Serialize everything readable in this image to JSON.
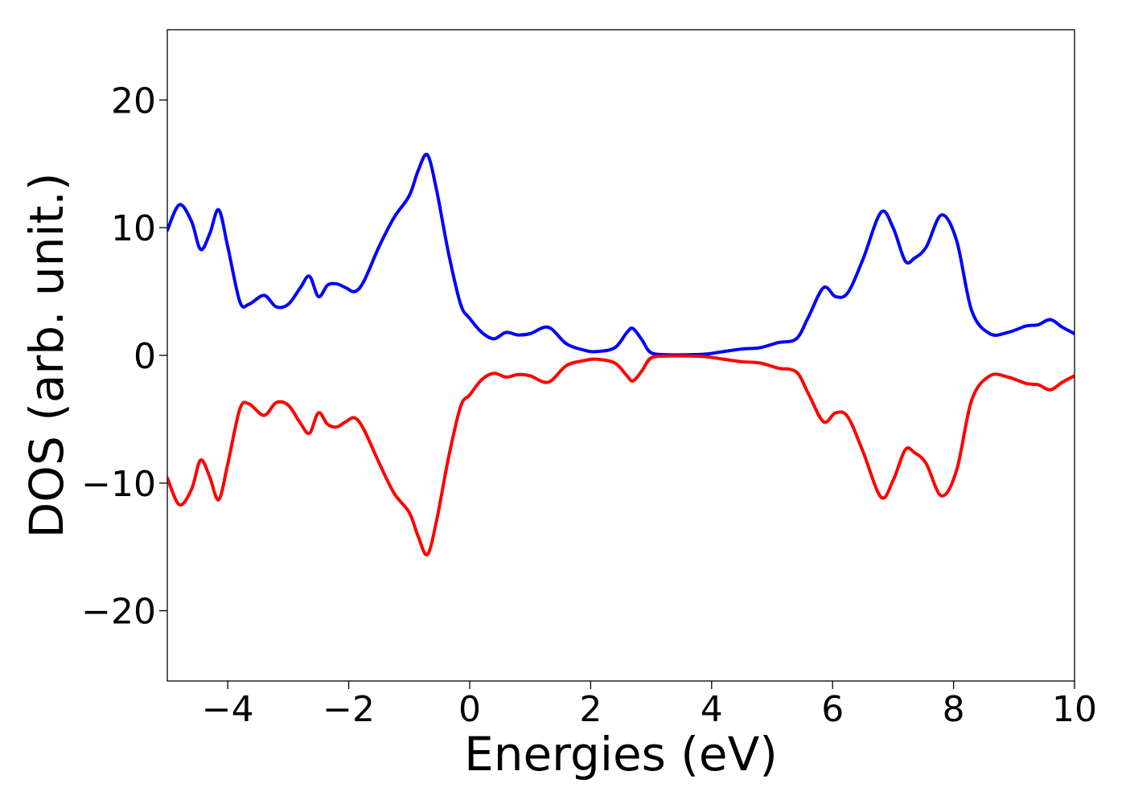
{
  "chart_data": {
    "type": "line",
    "title": "",
    "xlabel": "Energies (eV)",
    "ylabel": "DOS (arb. unit.)",
    "xlim": [
      -5,
      10
    ],
    "ylim": [
      -25.5,
      25.5
    ],
    "grid": false,
    "legend": "none",
    "x_ticks": [
      -4,
      -2,
      0,
      2,
      4,
      6,
      8,
      10
    ],
    "x_tick_labels": [
      "−4",
      "−2",
      "0",
      "2",
      "4",
      "6",
      "8",
      "10"
    ],
    "y_ticks": [
      -20,
      -10,
      0,
      10,
      20
    ],
    "y_tick_labels": [
      "−20",
      "−10",
      "0",
      "10",
      "20"
    ],
    "series": [
      {
        "color": "#0000ff",
        "x": [
          -5.0,
          -4.8,
          -4.6,
          -4.45,
          -4.3,
          -4.15,
          -4.0,
          -3.8,
          -3.65,
          -3.4,
          -3.2,
          -3.0,
          -2.8,
          -2.65,
          -2.5,
          -2.35,
          -2.2,
          -2.05,
          -1.9,
          -1.75,
          -1.5,
          -1.25,
          -1.0,
          -0.85,
          -0.7,
          -0.55,
          -0.35,
          -0.15,
          0.0,
          0.2,
          0.4,
          0.6,
          0.8,
          1.0,
          1.3,
          1.6,
          1.9,
          2.1,
          2.4,
          2.6,
          2.7,
          2.85,
          3.0,
          3.3,
          3.6,
          3.9,
          4.2,
          4.5,
          4.8,
          5.1,
          5.4,
          5.6,
          5.85,
          6.05,
          6.25,
          6.5,
          6.8,
          7.0,
          7.2,
          7.35,
          7.55,
          7.8,
          8.05,
          8.3,
          8.6,
          8.9,
          9.2,
          9.4,
          9.6,
          9.8,
          10.0
        ],
        "values": [
          9.8,
          11.8,
          10.5,
          8.3,
          9.5,
          11.4,
          8.5,
          4.2,
          4.0,
          4.7,
          3.8,
          4.0,
          5.3,
          6.2,
          4.6,
          5.5,
          5.6,
          5.3,
          5.0,
          5.8,
          8.5,
          10.8,
          12.5,
          14.5,
          15.7,
          13.0,
          8.0,
          4.0,
          2.9,
          1.8,
          1.3,
          1.8,
          1.6,
          1.7,
          2.2,
          0.9,
          0.4,
          0.3,
          0.6,
          1.8,
          2.1,
          1.2,
          0.2,
          0.05,
          0.05,
          0.1,
          0.3,
          0.5,
          0.6,
          1.0,
          1.3,
          3.0,
          5.3,
          4.6,
          4.9,
          7.5,
          11.2,
          10.0,
          7.4,
          7.6,
          8.5,
          11.0,
          9.0,
          3.5,
          1.7,
          1.8,
          2.3,
          2.4,
          2.8,
          2.2,
          1.7
        ]
      },
      {
        "color": "#ff0000",
        "x": [
          -5.0,
          -4.8,
          -4.6,
          -4.45,
          -4.3,
          -4.15,
          -4.0,
          -3.8,
          -3.65,
          -3.4,
          -3.2,
          -3.0,
          -2.8,
          -2.65,
          -2.5,
          -2.35,
          -2.2,
          -2.05,
          -1.9,
          -1.75,
          -1.5,
          -1.25,
          -1.0,
          -0.85,
          -0.7,
          -0.55,
          -0.35,
          -0.15,
          0.0,
          0.2,
          0.4,
          0.6,
          0.8,
          1.0,
          1.3,
          1.6,
          1.9,
          2.1,
          2.4,
          2.6,
          2.7,
          2.85,
          3.0,
          3.3,
          3.6,
          3.9,
          4.2,
          4.5,
          4.8,
          5.1,
          5.4,
          5.6,
          5.85,
          6.05,
          6.25,
          6.5,
          6.8,
          7.0,
          7.2,
          7.35,
          7.55,
          7.8,
          8.05,
          8.3,
          8.6,
          8.9,
          9.2,
          9.4,
          9.6,
          9.8,
          10.0
        ],
        "values": [
          -9.6,
          -11.7,
          -10.5,
          -8.2,
          -9.5,
          -11.3,
          -8.5,
          -4.2,
          -3.8,
          -4.7,
          -3.7,
          -3.9,
          -5.3,
          -6.1,
          -4.5,
          -5.4,
          -5.6,
          -5.2,
          -4.9,
          -5.8,
          -8.4,
          -10.8,
          -12.3,
          -14.2,
          -15.6,
          -13.0,
          -8.0,
          -4.0,
          -3.1,
          -1.9,
          -1.4,
          -1.7,
          -1.5,
          -1.6,
          -2.1,
          -0.8,
          -0.4,
          -0.3,
          -0.6,
          -1.6,
          -2.0,
          -1.2,
          -0.2,
          -0.05,
          -0.05,
          -0.1,
          -0.3,
          -0.5,
          -0.6,
          -1.0,
          -1.3,
          -3.0,
          -5.2,
          -4.5,
          -4.8,
          -7.5,
          -11.1,
          -9.8,
          -7.4,
          -7.6,
          -8.5,
          -11.0,
          -9.0,
          -3.5,
          -1.6,
          -1.7,
          -2.2,
          -2.3,
          -2.7,
          -2.1,
          -1.6
        ]
      }
    ]
  }
}
